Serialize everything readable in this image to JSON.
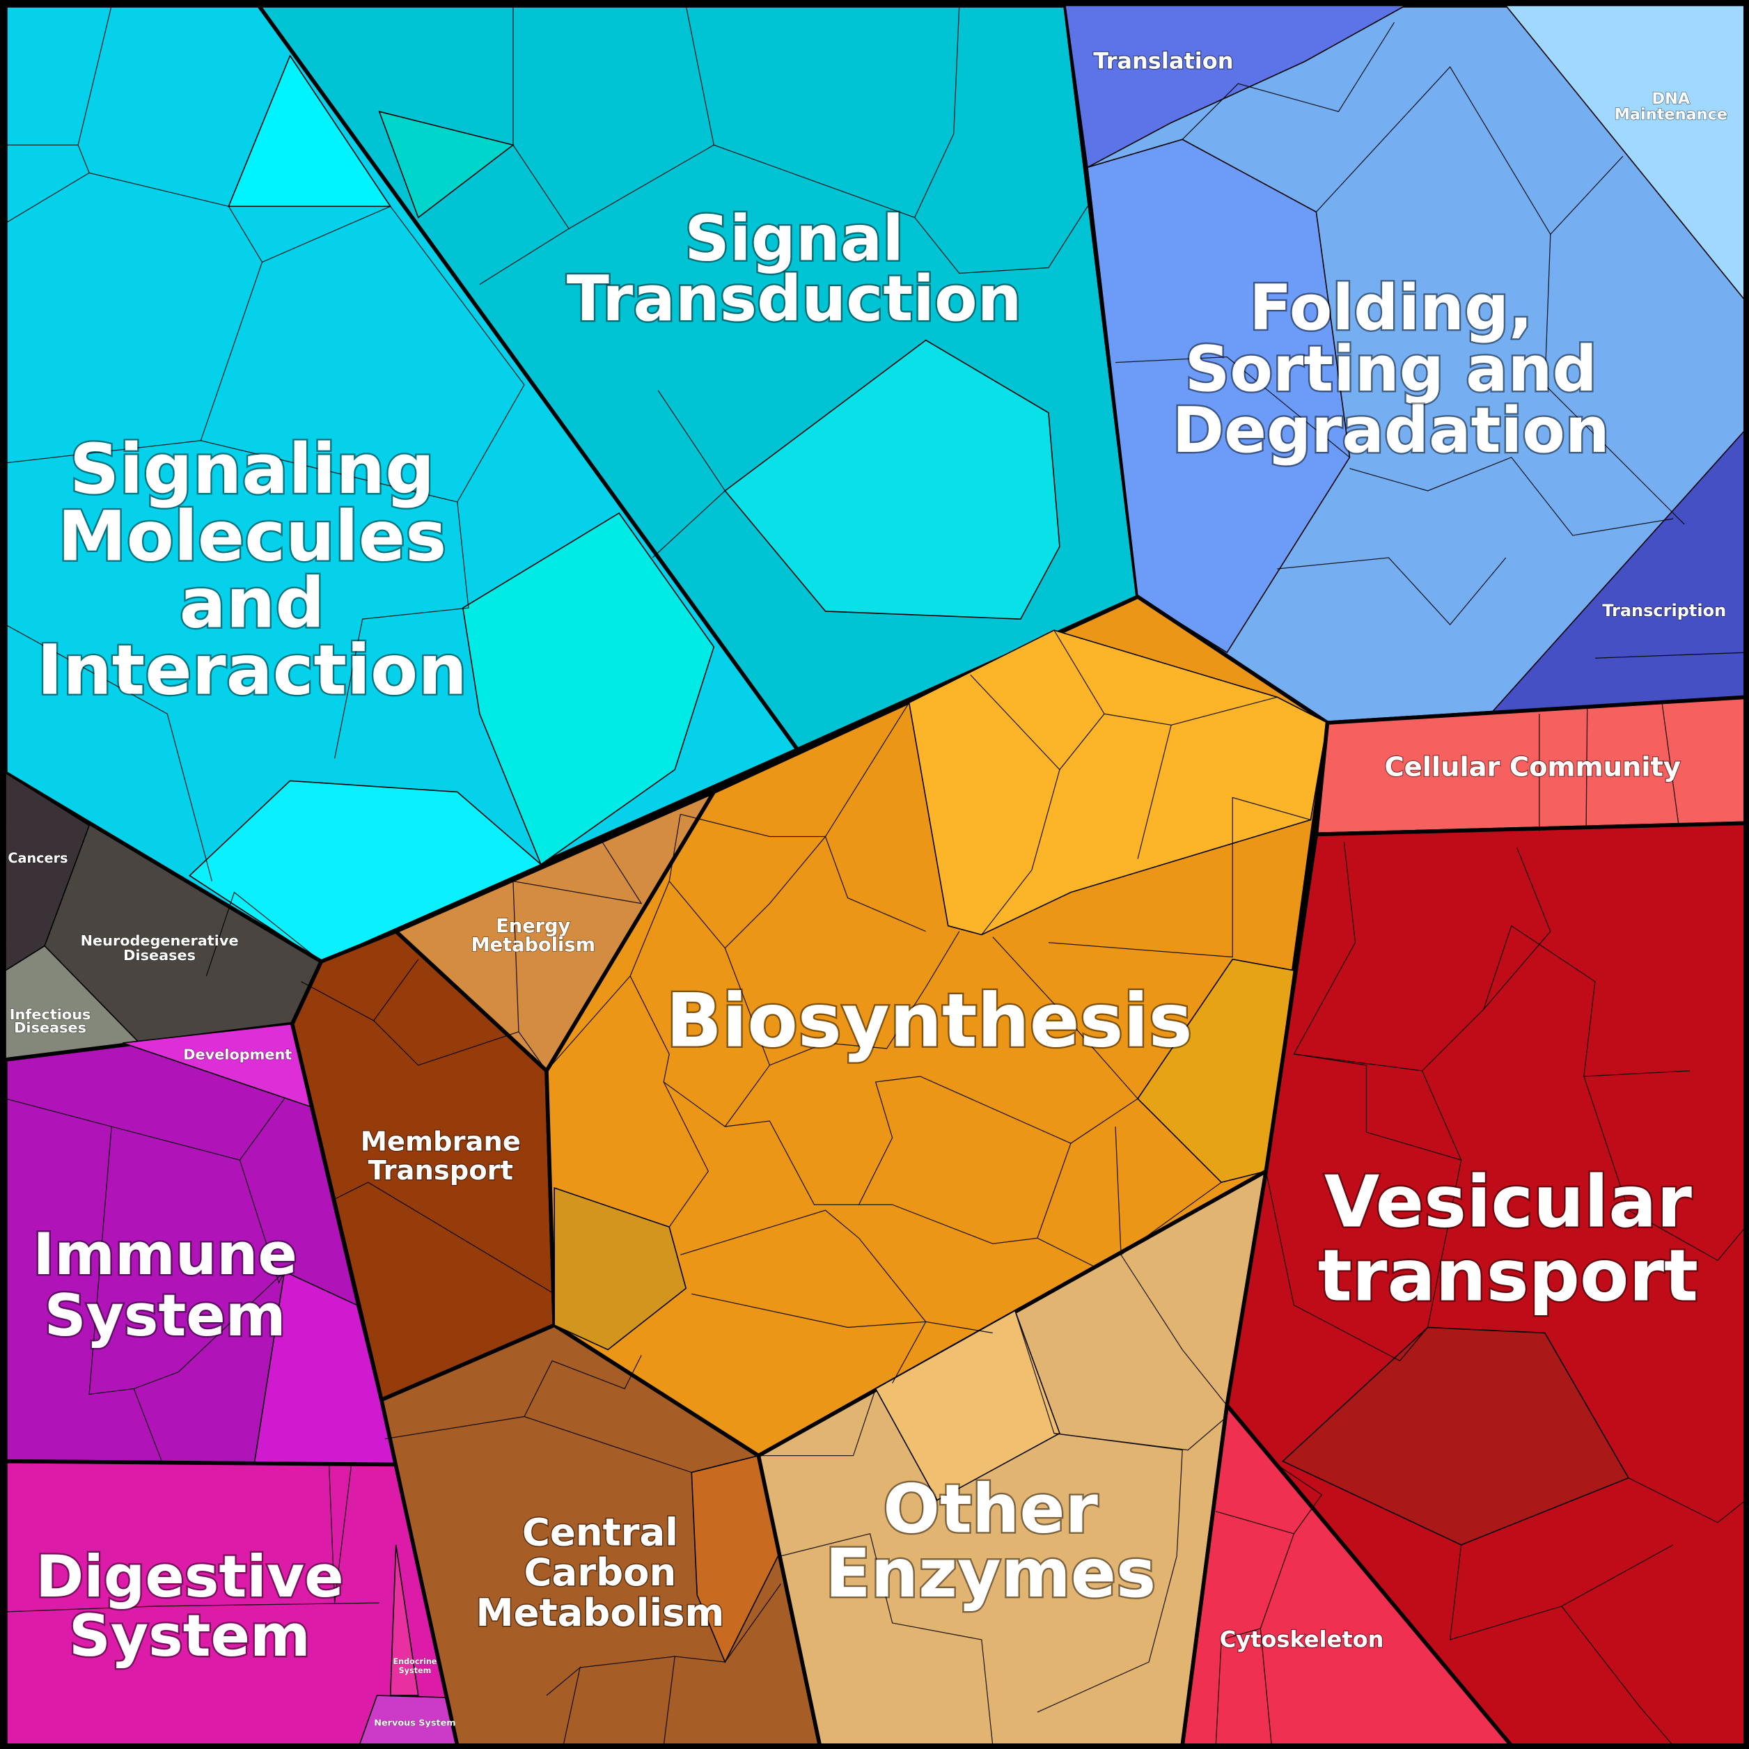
{
  "regions": [
    {
      "lines": [
        "Signaling",
        "Molecules",
        "and",
        "Interaction"
      ]
    },
    {
      "lines": [
        "Signal",
        "Transduction"
      ]
    },
    {
      "lines": [
        "Translation"
      ]
    },
    {
      "lines": [
        "DNA",
        "Maintenance"
      ]
    },
    {
      "lines": [
        "Folding,",
        "Sorting and",
        "Degradation"
      ]
    },
    {
      "lines": [
        "Transcription"
      ]
    },
    {
      "lines": [
        "Cellular Community"
      ]
    },
    {
      "lines": [
        "Cancers"
      ]
    },
    {
      "lines": [
        "Neurodegenerative",
        "Diseases"
      ]
    },
    {
      "lines": [
        "Infectious",
        "Diseases"
      ]
    },
    {
      "lines": [
        "Development"
      ]
    },
    {
      "lines": [
        "Energy",
        "Metabolism"
      ]
    },
    {
      "lines": [
        "Membrane",
        "Transport"
      ]
    },
    {
      "lines": [
        "Biosynthesis"
      ]
    },
    {
      "lines": [
        "Immune",
        "System"
      ]
    },
    {
      "lines": [
        "Vesicular",
        "transport"
      ]
    },
    {
      "lines": [
        "Digestive",
        "System"
      ]
    },
    {
      "lines": [
        "Central",
        "Carbon",
        "Metabolism"
      ]
    },
    {
      "lines": [
        "Other",
        "Enzymes"
      ]
    },
    {
      "lines": [
        "Endocrine",
        "System"
      ]
    },
    {
      "lines": [
        "Nervous System"
      ]
    },
    {
      "lines": [
        "Cytoskeleton"
      ]
    }
  ]
}
